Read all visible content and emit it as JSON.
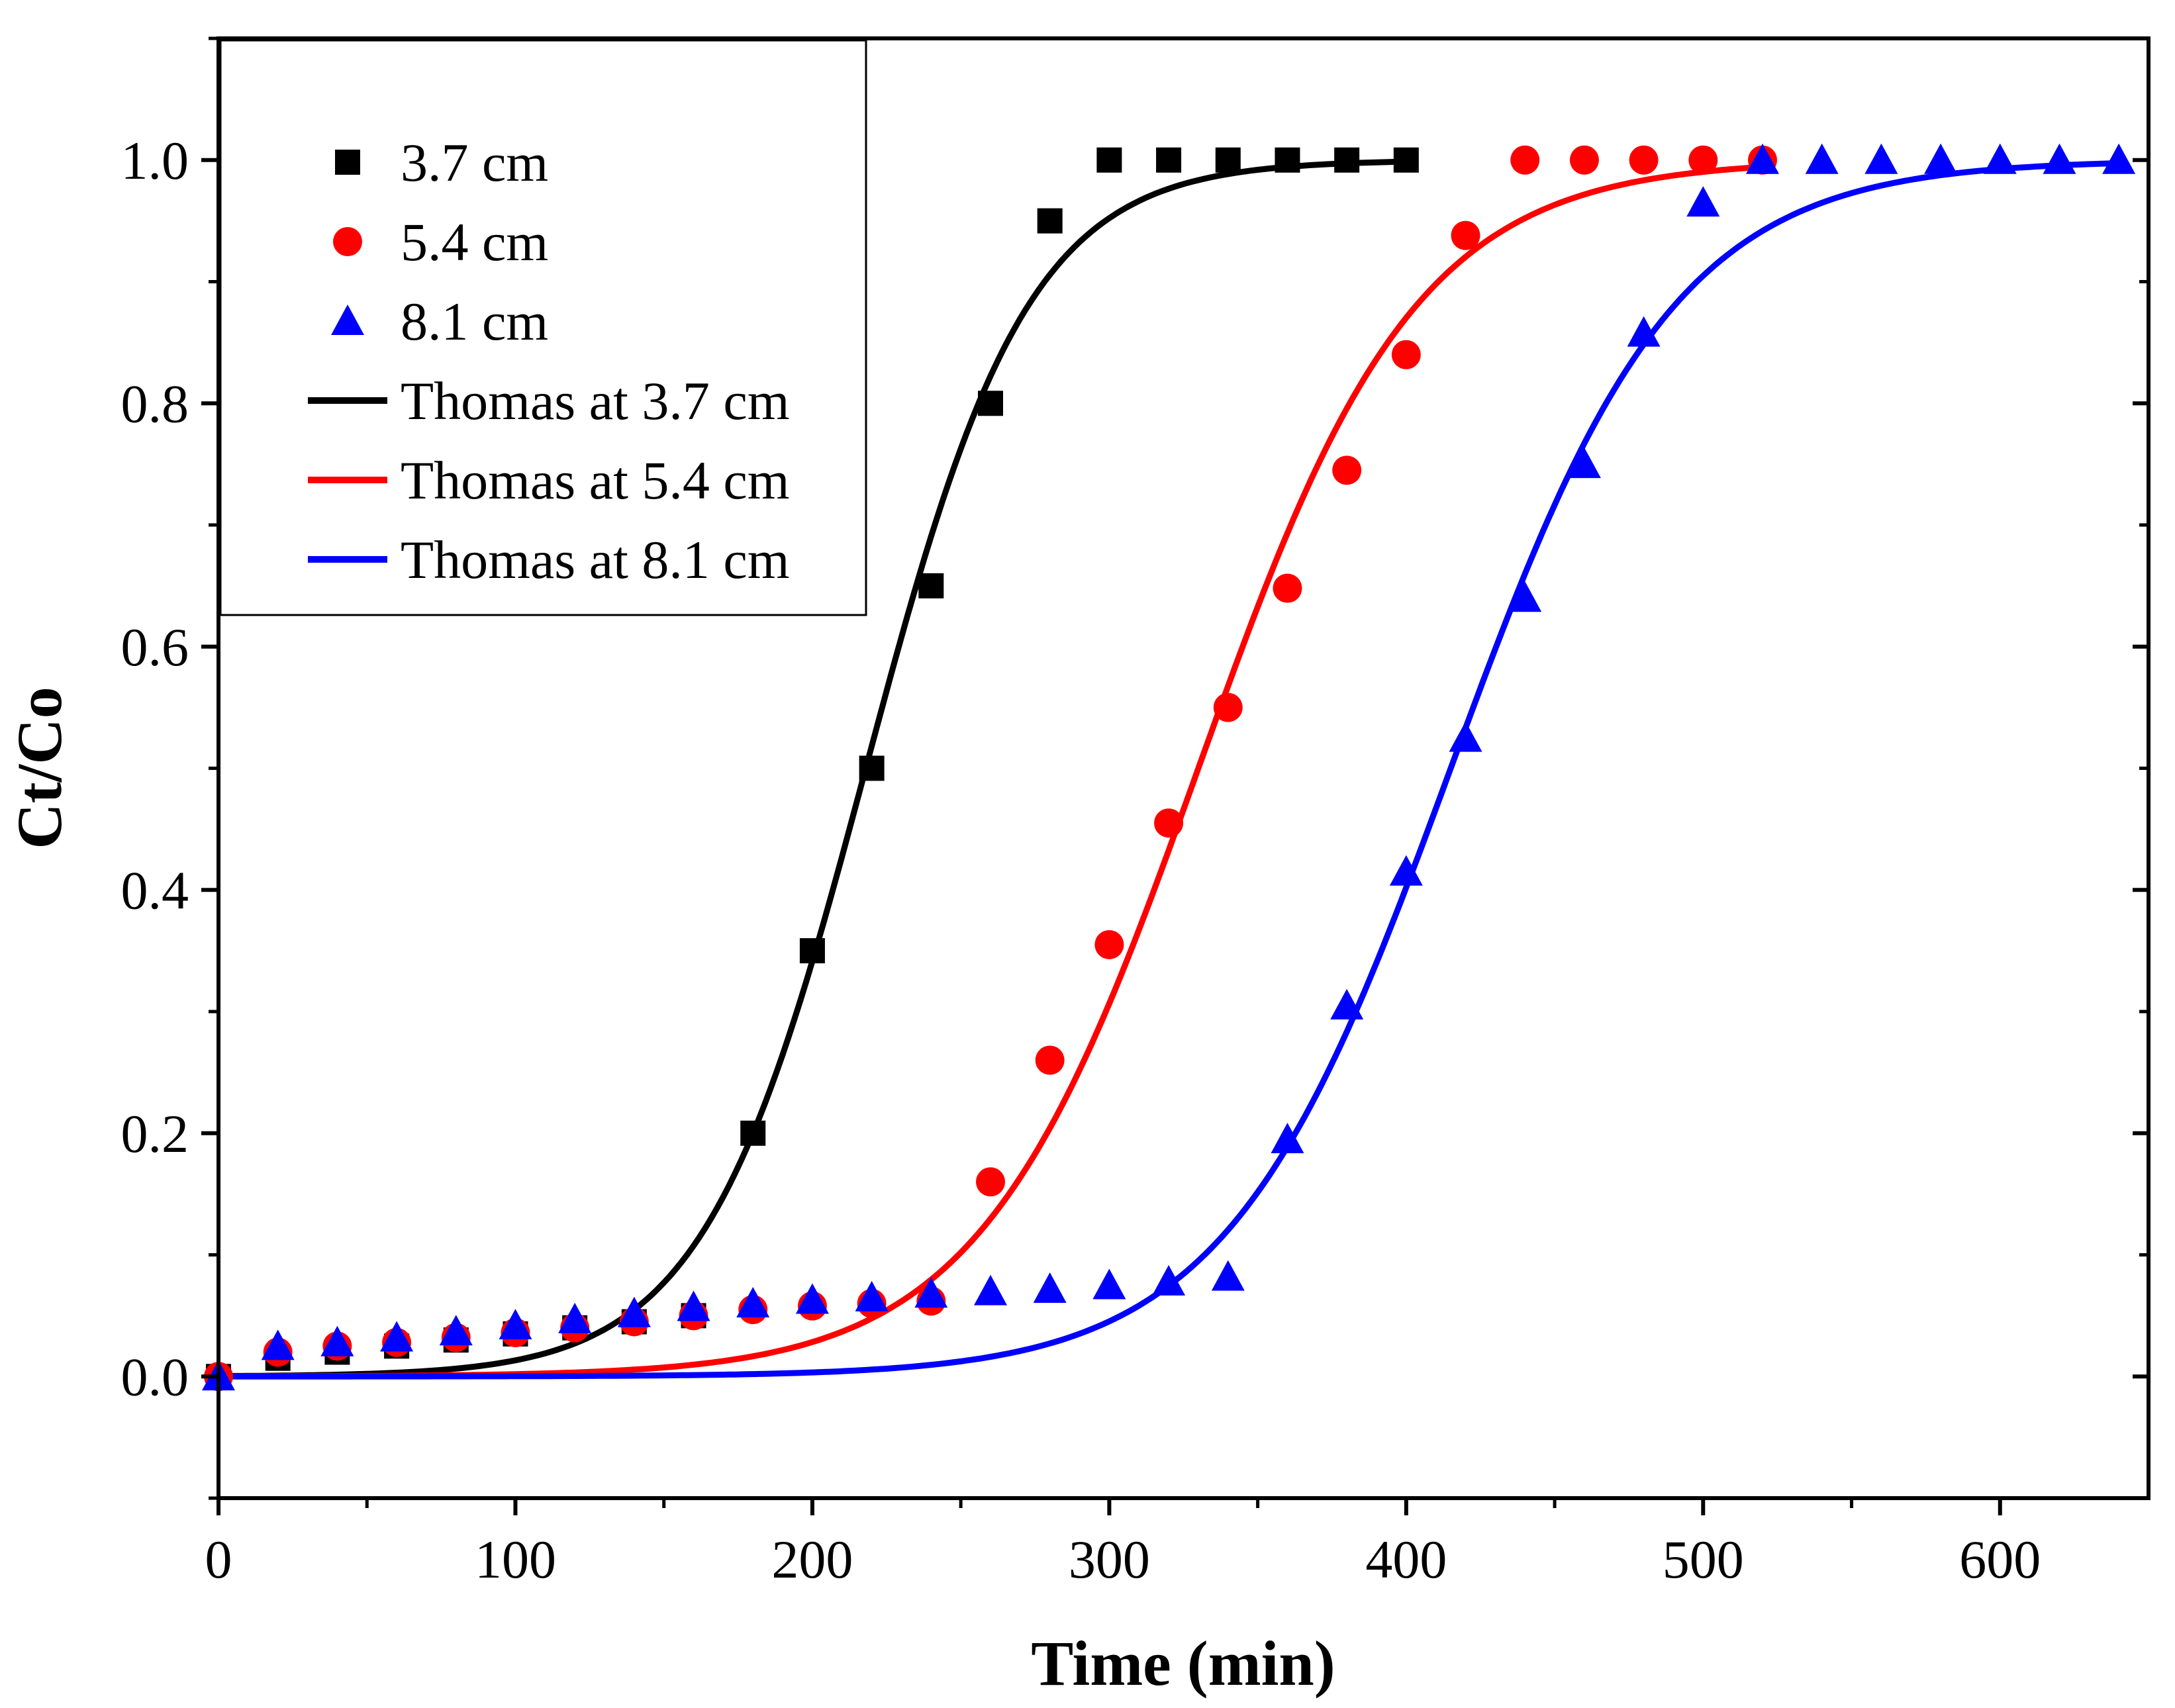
{
  "chart_data": {
    "type": "scatter",
    "title": "",
    "xlabel": "Time (min)",
    "ylabel": "Ct/Co",
    "xlim": [
      0,
      650
    ],
    "ylim": [
      -0.1,
      1.1
    ],
    "xticks": [
      0,
      100,
      200,
      300,
      400,
      500,
      600
    ],
    "xtick_labels": [
      "0",
      "100",
      "200",
      "300",
      "400",
      "500",
      "600"
    ],
    "yticks": [
      0.0,
      0.2,
      0.4,
      0.6,
      0.8,
      1.0
    ],
    "ytick_labels": [
      "0.0",
      "0.2",
      "0.4",
      "0.6",
      "0.8",
      "1.0"
    ],
    "grid": false,
    "legend_position": "top-left",
    "series": [
      {
        "name": "3.7 cm",
        "kind": "points",
        "marker": "square",
        "color": "#000000",
        "x": [
          0,
          20,
          40,
          60,
          80,
          100,
          120,
          140,
          160,
          180,
          200,
          220,
          240,
          260,
          280,
          300,
          320,
          340,
          360,
          380,
          400
        ],
        "y": [
          0.0,
          0.015,
          0.02,
          0.025,
          0.03,
          0.035,
          0.04,
          0.045,
          0.05,
          0.2,
          0.35,
          0.5,
          0.65,
          0.8,
          0.95,
          1.0,
          1.0,
          1.0,
          1.0,
          1.0,
          1.0
        ]
      },
      {
        "name": "5.4 cm",
        "kind": "points",
        "marker": "circle",
        "color": "#ff0000",
        "x": [
          0,
          20,
          40,
          60,
          80,
          100,
          120,
          140,
          160,
          180,
          200,
          220,
          240,
          260,
          280,
          300,
          320,
          340,
          360,
          380,
          400,
          420,
          440,
          460,
          480,
          500,
          520
        ],
        "y": [
          0.0,
          0.02,
          0.025,
          0.028,
          0.032,
          0.036,
          0.04,
          0.045,
          0.05,
          0.055,
          0.058,
          0.06,
          0.062,
          0.16,
          0.26,
          0.355,
          0.455,
          0.55,
          0.648,
          0.745,
          0.84,
          0.938,
          1.0,
          1.0,
          1.0,
          1.0,
          1.0
        ]
      },
      {
        "name": "8.1 cm",
        "kind": "points",
        "marker": "triangle",
        "color": "#0000ff",
        "x": [
          0,
          20,
          40,
          60,
          80,
          100,
          120,
          140,
          160,
          180,
          200,
          220,
          240,
          260,
          280,
          300,
          320,
          340,
          360,
          380,
          400,
          420,
          440,
          460,
          480,
          500,
          520,
          540,
          560,
          580,
          600,
          620,
          640
        ],
        "y": [
          0.0,
          0.025,
          0.028,
          0.032,
          0.037,
          0.042,
          0.047,
          0.052,
          0.057,
          0.06,
          0.063,
          0.065,
          0.068,
          0.07,
          0.072,
          0.075,
          0.078,
          0.082,
          0.195,
          0.305,
          0.415,
          0.525,
          0.64,
          0.75,
          0.858,
          0.965,
          1.0,
          1.0,
          1.0,
          1.0,
          1.0,
          1.0,
          1.0
        ]
      },
      {
        "name": "Thomas at 3.7 cm",
        "kind": "line",
        "color": "#000000",
        "model": "thomas",
        "k": 0.0365,
        "t50": 218,
        "x_range": [
          0,
          400
        ]
      },
      {
        "name": "Thomas at 5.4 cm",
        "kind": "line",
        "color": "#ff0000",
        "model": "thomas",
        "k": 0.0272,
        "t50": 330,
        "x_range": [
          0,
          520
        ]
      },
      {
        "name": "Thomas at 8.1 cm",
        "kind": "line",
        "color": "#0000ff",
        "model": "thomas",
        "k": 0.0265,
        "t50": 415,
        "x_range": [
          0,
          640
        ]
      }
    ]
  }
}
